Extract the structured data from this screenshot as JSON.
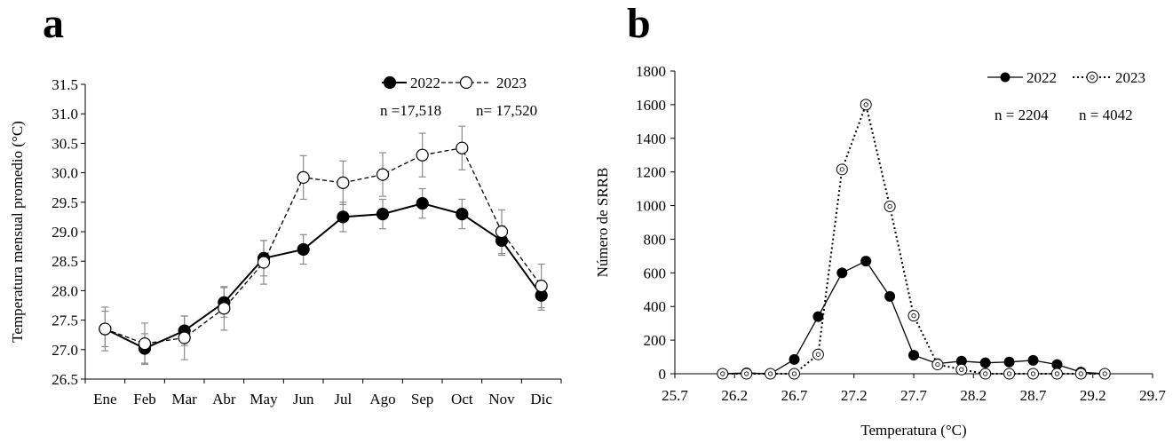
{
  "chart_data": [
    {
      "panel": "a",
      "type": "line",
      "xlabel": "",
      "ylabel": "Temperatura mensual promedio (°C)",
      "categories": [
        "Ene",
        "Feb",
        "Mar",
        "Abr",
        "May",
        "Jun",
        "Jul",
        "Ago",
        "Sep",
        "Oct",
        "Nov",
        "Dic"
      ],
      "ylim": [
        26.5,
        31.5
      ],
      "yticks": [
        "26.5",
        "27.0",
        "27.5",
        "28.0",
        "28.5",
        "29.0",
        "29.5",
        "30.0",
        "30.5",
        "31.0",
        "31.5"
      ],
      "error_bars": true,
      "series": [
        {
          "name": "2022",
          "style": "solid",
          "marker": "filled",
          "values": [
            27.35,
            27.02,
            27.32,
            27.8,
            28.55,
            28.7,
            29.25,
            29.3,
            29.48,
            29.3,
            28.85,
            27.92
          ],
          "errors": [
            0.3,
            0.25,
            0.25,
            0.25,
            0.3,
            0.25,
            0.25,
            0.25,
            0.25,
            0.25,
            0.25,
            0.25
          ]
        },
        {
          "name": "2023",
          "style": "dashed",
          "marker": "open",
          "values": [
            27.35,
            27.1,
            27.2,
            27.7,
            28.48,
            29.92,
            29.83,
            29.97,
            30.3,
            30.42,
            29.0,
            28.08
          ],
          "errors": [
            0.37,
            0.35,
            0.37,
            0.37,
            0.37,
            0.37,
            0.37,
            0.37,
            0.37,
            0.37,
            0.37,
            0.37
          ]
        }
      ],
      "legend_position": "top-right",
      "annotations": [
        "n =17,518",
        "n= 17,520"
      ]
    },
    {
      "panel": "b",
      "type": "line",
      "xlabel": "Temperatura (°C)",
      "ylabel": "Número de SRRB",
      "xlim": [
        25.7,
        29.7
      ],
      "xticks": [
        "25.7",
        "26.2",
        "26.7",
        "27.2",
        "27.7",
        "28.2",
        "28.7",
        "29.2",
        "29.7"
      ],
      "ylim": [
        0,
        1800
      ],
      "yticks": [
        "0",
        "200",
        "400",
        "600",
        "800",
        "1000",
        "1200",
        "1400",
        "1600",
        "1800"
      ],
      "series": [
        {
          "name": "2022",
          "style": "solid",
          "marker": "filled",
          "x": [
            26.1,
            26.3,
            26.5,
            26.7,
            26.9,
            27.1,
            27.3,
            27.5,
            27.7,
            27.9,
            28.1,
            28.3,
            28.5,
            28.7,
            28.9,
            29.1,
            29.3
          ],
          "y": [
            0,
            5,
            0,
            85,
            340,
            600,
            670,
            460,
            110,
            60,
            75,
            65,
            70,
            80,
            55,
            10,
            0
          ]
        },
        {
          "name": "2023",
          "style": "dotted",
          "marker": "open",
          "x": [
            26.1,
            26.3,
            26.5,
            26.7,
            26.9,
            27.1,
            27.3,
            27.5,
            27.7,
            27.9,
            28.1,
            28.3,
            28.5,
            28.7,
            28.9,
            29.1,
            29.3
          ],
          "y": [
            0,
            0,
            0,
            0,
            115,
            1215,
            1600,
            995,
            345,
            55,
            25,
            0,
            0,
            0,
            0,
            0,
            0
          ]
        }
      ],
      "legend_position": "top-right",
      "annotations": [
        "n = 2204",
        "n = 4042"
      ]
    }
  ]
}
